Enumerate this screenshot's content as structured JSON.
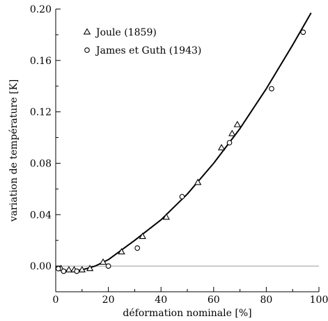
{
  "chart_data": {
    "type": "scatter",
    "xlabel": "déformation nominale [%]",
    "ylabel": "variation de température [K]",
    "xlim": [
      0,
      100
    ],
    "ylim": [
      -0.02,
      0.2
    ],
    "xticks": [
      0,
      20,
      40,
      60,
      80,
      100
    ],
    "yticks": [
      0.0,
      0.04,
      0.08,
      0.12,
      0.16,
      0.2
    ],
    "xtick_labels": [
      "0",
      "20",
      "40",
      "60",
      "80",
      "100"
    ],
    "ytick_labels": [
      "0.00",
      "0.04",
      "0.08",
      "0.12",
      "0.16",
      "0.20"
    ],
    "grid": false,
    "legend_position": "top-left",
    "reference_line_y": 0,
    "series": [
      {
        "name": "Joule (1859)",
        "marker": "triangle",
        "points": [
          [
            2,
            -0.002
          ],
          [
            5,
            -0.003
          ],
          [
            7,
            -0.003
          ],
          [
            10,
            -0.003
          ],
          [
            13,
            -0.002
          ],
          [
            18,
            0.003
          ],
          [
            25,
            0.011
          ],
          [
            33,
            0.023
          ],
          [
            42,
            0.038
          ],
          [
            54,
            0.065
          ],
          [
            63,
            0.092
          ],
          [
            67,
            0.103
          ],
          [
            69,
            0.11
          ]
        ]
      },
      {
        "name": "James et Guth (1943)",
        "marker": "circle",
        "points": [
          [
            1,
            -0.002
          ],
          [
            3,
            -0.004
          ],
          [
            8,
            -0.004
          ],
          [
            20,
            0.0
          ],
          [
            31,
            0.014
          ],
          [
            48,
            0.054
          ],
          [
            66,
            0.096
          ],
          [
            82,
            0.138
          ],
          [
            94,
            0.182
          ]
        ]
      },
      {
        "marker": "line",
        "points": [
          [
            0,
            -0.001
          ],
          [
            5,
            -0.004
          ],
          [
            10,
            -0.003
          ],
          [
            15,
            0.0
          ],
          [
            20,
            0.005
          ],
          [
            30,
            0.02
          ],
          [
            40,
            0.036
          ],
          [
            50,
            0.056
          ],
          [
            60,
            0.08
          ],
          [
            70,
            0.107
          ],
          [
            80,
            0.138
          ],
          [
            90,
            0.172
          ],
          [
            97,
            0.197
          ]
        ]
      }
    ]
  }
}
